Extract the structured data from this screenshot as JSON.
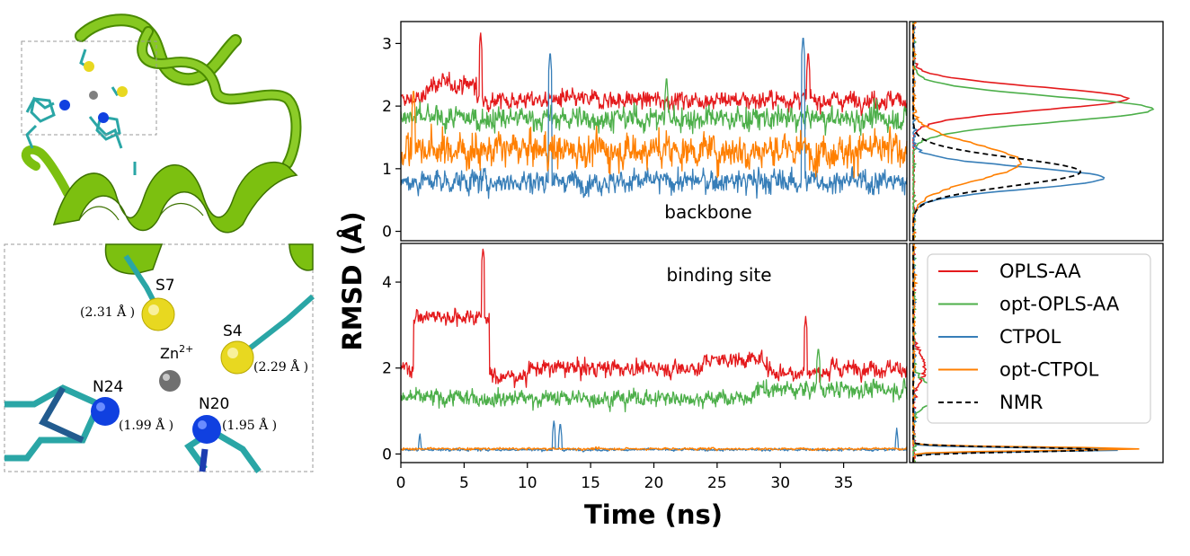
{
  "figure": {
    "structure_panel": {
      "atoms": {
        "s7": {
          "label": "S7",
          "distance": "(2.31 Å )"
        },
        "s4": {
          "label": "S4",
          "distance": "(2.29 Å )"
        },
        "zn": {
          "label": "Zn",
          "charge": "2+"
        },
        "n24": {
          "label": "N24",
          "distance": "(1.99 Å )"
        },
        "n20": {
          "label": "N20",
          "distance": "(1.95 Å )"
        }
      },
      "colors": {
        "ribbon": "#7cc010",
        "ribbon_dark": "#4a8a00",
        "sulfur": "#e8d820",
        "nitrogen": "#1040e0",
        "zinc": "#808080",
        "stick": "#2aa6a6"
      }
    }
  },
  "chart_data": {
    "type": "line",
    "xlabel": "Time (ns)",
    "ylabel": "RMSD (Å)",
    "xlim": [
      0,
      40
    ],
    "xticks": [
      0,
      5,
      10,
      15,
      20,
      25,
      30,
      35
    ],
    "legend_position": "right",
    "series": [
      {
        "name": "OPLS-AA",
        "color": "#e41a1c"
      },
      {
        "name": "opt-OPLS-AA",
        "color": "#4daf4a"
      },
      {
        "name": "CTPOL",
        "color": "#377eb8"
      },
      {
        "name": "opt-CTPOL",
        "color": "#ff7f00"
      },
      {
        "name": "NMR",
        "color": "#000000",
        "dash": true
      }
    ],
    "panels": [
      {
        "id": "backbone",
        "label": "backbone",
        "ylim": [
          -0.15,
          3.35
        ],
        "yticks": [
          0,
          1,
          2,
          3
        ],
        "series": {
          "OPLS-AA": {
            "mean": 2.1,
            "noise": 0.15,
            "segments": [
              [
                2,
                6,
                2.35
              ]
            ],
            "spikes": [
              [
                6.3,
                3.2
              ],
              [
                32.2,
                2.9
              ]
            ]
          },
          "opt-OPLS-AA": {
            "mean": 1.8,
            "noise": 0.2,
            "segments": [],
            "spikes": [
              [
                21,
                2.5
              ]
            ]
          },
          "CTPOL": {
            "mean": 0.8,
            "noise": 0.2,
            "segments": [],
            "spikes": [
              [
                11.8,
                2.9
              ],
              [
                31.8,
                3.15
              ]
            ]
          },
          "opt-CTPOL": {
            "mean": 1.3,
            "noise": 0.3,
            "segments": [],
            "spikes": [
              [
                1,
                2.3
              ]
            ]
          }
        },
        "distributions": {
          "OPLS-AA": {
            "mu": 2.12,
            "sigma": 0.18,
            "peak": 0.9
          },
          "opt-OPLS-AA": {
            "mu": 1.95,
            "sigma": 0.2,
            "peak": 1.0
          },
          "CTPOL": {
            "mu": 0.85,
            "sigma": 0.17,
            "peak": 0.8
          },
          "opt-CTPOL": {
            "mu": 1.1,
            "sigma": 0.28,
            "peak": 0.45
          },
          "NMR": {
            "mu": 0.95,
            "sigma": 0.22,
            "peak": 0.7
          }
        }
      },
      {
        "id": "binding_site",
        "label": "binding site",
        "ylim": [
          -0.2,
          4.9
        ],
        "yticks": [
          0,
          2,
          4
        ],
        "series": {
          "OPLS-AA": {
            "mean": 2.0,
            "noise": 0.2,
            "segments": [
              [
                1,
                7,
                3.2
              ],
              [
                7,
                10,
                1.8
              ],
              [
                24,
                29,
                2.2
              ],
              [
                29,
                34,
                1.9
              ]
            ],
            "spikes": [
              [
                6.5,
                4.8
              ],
              [
                32,
                3.2
              ]
            ]
          },
          "opt-OPLS-AA": {
            "mean": 1.3,
            "noise": 0.2,
            "segments": [
              [
                28,
                40,
                1.5
              ]
            ],
            "spikes": [
              [
                33,
                2.5
              ]
            ]
          },
          "CTPOL": {
            "mean": 0.1,
            "noise": 0.03,
            "segments": [],
            "spikes": [
              [
                1.5,
                0.5
              ],
              [
                12.1,
                0.8
              ],
              [
                12.6,
                0.75
              ],
              [
                39.2,
                0.6
              ]
            ]
          },
          "opt-CTPOL": {
            "mean": 0.12,
            "noise": 0.03,
            "segments": [],
            "spikes": []
          }
        },
        "distributions": {
          "OPLS-AA": {
            "mu": 2.0,
            "sigma": 0.3,
            "peak": 0.05
          },
          "opt-OPLS-AA": {
            "mu": 1.4,
            "sigma": 0.25,
            "peak": 0.1
          },
          "CTPOL": {
            "mu": 0.1,
            "sigma": 0.04,
            "peak": 0.9
          },
          "opt-CTPOL": {
            "mu": 0.12,
            "sigma": 0.04,
            "peak": 0.95
          },
          "NMR": {
            "mu": 0.1,
            "sigma": 0.05,
            "peak": 0.8
          }
        }
      }
    ]
  }
}
